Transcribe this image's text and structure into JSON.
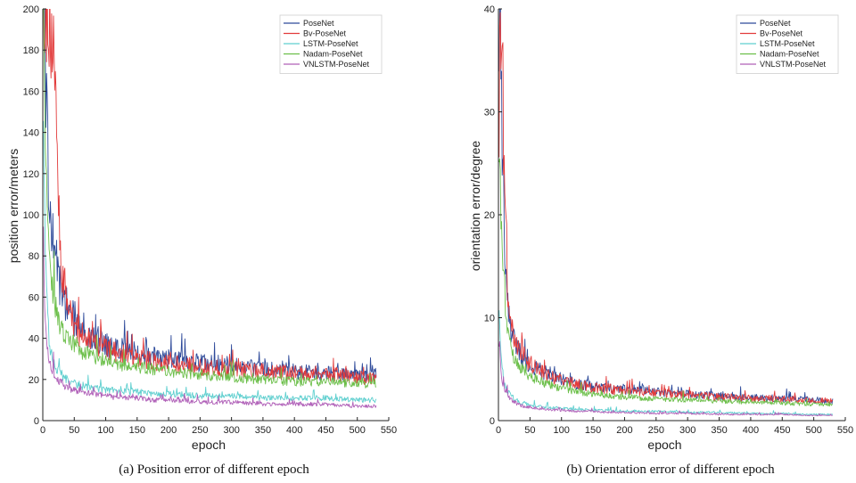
{
  "series_styles": [
    {
      "name": "PoseNet",
      "color": "#2e4a9a"
    },
    {
      "name": "Bv-PoseNet",
      "color": "#e23b3b"
    },
    {
      "name": "LSTM-PoseNet",
      "color": "#5fcfcf"
    },
    {
      "name": "Nadam-PoseNet",
      "color": "#6cbf4a"
    },
    {
      "name": "VNLSTM-PoseNet",
      "color": "#b060b8"
    }
  ],
  "chart_data": [
    {
      "type": "line",
      "caption": "(a) Position error of different epoch",
      "xlabel": "epoch",
      "ylabel": "position error/meters",
      "xlim": [
        0,
        550
      ],
      "ylim": [
        0,
        200
      ],
      "xticks": [
        "0",
        "50",
        "100",
        "150",
        "200",
        "250",
        "300",
        "350",
        "400",
        "450",
        "500",
        "550"
      ],
      "yticks": [
        "0",
        "20",
        "40",
        "60",
        "80",
        "100",
        "120",
        "140",
        "160",
        "180",
        "200"
      ],
      "legend_position": "top-right",
      "grid": false,
      "x": [
        1,
        3,
        6,
        10,
        15,
        20,
        25,
        30,
        40,
        50,
        60,
        80,
        100,
        125,
        150,
        175,
        200,
        250,
        300,
        350,
        400,
        450,
        500,
        530
      ],
      "series": [
        {
          "name": "PoseNet",
          "values": [
            200,
            180,
            150,
            110,
            92,
            80,
            70,
            62,
            55,
            48,
            44,
            40,
            37,
            35,
            33,
            31,
            30,
            28,
            27,
            25,
            24,
            23,
            22,
            22
          ]
        },
        {
          "name": "Bv-PoseNet",
          "values": [
            200,
            200,
            200,
            200,
            185,
            150,
            110,
            75,
            55,
            45,
            42,
            38,
            35,
            33,
            31,
            29,
            28,
            26,
            25,
            24,
            23,
            22,
            21,
            20
          ]
        },
        {
          "name": "LSTM-PoseNet",
          "values": [
            140,
            100,
            60,
            40,
            30,
            26,
            24,
            22,
            20,
            18,
            17,
            16,
            15,
            14,
            14,
            13,
            13,
            12,
            12,
            11,
            11,
            11,
            10,
            10
          ]
        },
        {
          "name": "Nadam-PoseNet",
          "values": [
            200,
            150,
            110,
            80,
            65,
            55,
            48,
            44,
            40,
            37,
            34,
            31,
            29,
            27,
            26,
            25,
            24,
            22,
            21,
            20,
            19,
            19,
            18,
            18
          ]
        },
        {
          "name": "VNLSTM-PoseNet",
          "values": [
            90,
            60,
            40,
            30,
            25,
            22,
            20,
            18,
            16,
            15,
            14,
            13,
            12,
            11,
            11,
            10,
            10,
            9,
            9,
            8,
            8,
            8,
            7,
            7
          ]
        }
      ]
    },
    {
      "type": "line",
      "caption": "(b) Orientation error of different epoch",
      "xlabel": "epoch",
      "ylabel": "orientation error/degree",
      "xlim": [
        0,
        550
      ],
      "ylim": [
        0,
        40
      ],
      "xticks": [
        "0",
        "50",
        "100",
        "150",
        "200",
        "250",
        "300",
        "350",
        "400",
        "450",
        "500",
        "550"
      ],
      "yticks": [
        "0",
        "10",
        "20",
        "30",
        "40"
      ],
      "legend_position": "top-right",
      "grid": false,
      "x": [
        1,
        3,
        6,
        10,
        15,
        20,
        25,
        30,
        40,
        50,
        60,
        80,
        100,
        125,
        150,
        175,
        200,
        250,
        300,
        350,
        400,
        450,
        500,
        530
      ],
      "series": [
        {
          "name": "PoseNet",
          "values": [
            40,
            38,
            28,
            18,
            12,
            9,
            8,
            7,
            6,
            5.5,
            5,
            4.5,
            4,
            3.6,
            3.3,
            3.1,
            3,
            2.8,
            2.6,
            2.4,
            2.2,
            2.1,
            2,
            1.9
          ]
        },
        {
          "name": "Bv-PoseNet",
          "values": [
            30,
            38,
            33,
            20,
            13,
            10,
            8.5,
            7.5,
            6.5,
            5.5,
            5,
            4.3,
            3.9,
            3.5,
            3.2,
            3,
            2.9,
            2.7,
            2.5,
            2.3,
            2.2,
            2.1,
            2,
            1.9
          ]
        },
        {
          "name": "LSTM-PoseNet",
          "values": [
            12,
            8,
            5,
            3.5,
            2.8,
            2.4,
            2.1,
            1.9,
            1.7,
            1.5,
            1.4,
            1.3,
            1.2,
            1.1,
            1,
            1,
            0.9,
            0.9,
            0.8,
            0.8,
            0.7,
            0.7,
            0.6,
            0.6
          ]
        },
        {
          "name": "Nadam-PoseNet",
          "values": [
            28,
            22,
            16,
            12,
            9,
            7,
            6,
            5.5,
            4.8,
            4.3,
            4,
            3.5,
            3.1,
            2.8,
            2.6,
            2.4,
            2.3,
            2.1,
            2,
            1.9,
            1.8,
            1.7,
            1.6,
            1.5
          ]
        },
        {
          "name": "VNLSTM-PoseNet",
          "values": [
            8,
            6,
            4,
            3,
            2.4,
            2,
            1.8,
            1.6,
            1.4,
            1.3,
            1.2,
            1.1,
            1,
            0.9,
            0.9,
            0.8,
            0.8,
            0.7,
            0.7,
            0.6,
            0.6,
            0.6,
            0.5,
            0.5
          ]
        }
      ]
    }
  ]
}
